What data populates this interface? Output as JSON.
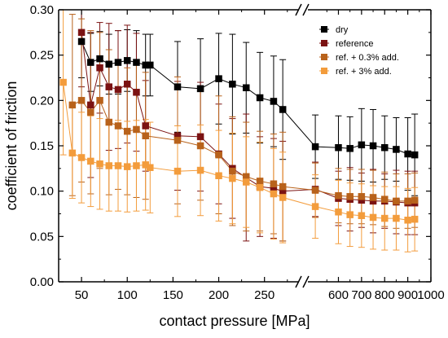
{
  "chart_data": {
    "type": "scatter",
    "title": "",
    "xlabel": "contact pressure [MPa]",
    "ylabel": "coefficient of friction",
    "ylim": [
      0,
      0.3
    ],
    "y_ticks": [
      "0.00",
      "0.05",
      "0.10",
      "0.15",
      "0.20",
      "0.25",
      "0.30"
    ],
    "x_axis_broken": true,
    "x_segments": [
      {
        "range": [
          25,
          285
        ],
        "ticks": [
          "50",
          "100",
          "150",
          "200",
          "250"
        ]
      },
      {
        "range": [
          475,
          1000
        ],
        "ticks": [
          "600",
          "700",
          "800",
          "900",
          "1000"
        ]
      }
    ],
    "legend_position": "top-right",
    "series": [
      {
        "name": "dry",
        "color": "#000000",
        "x": [
          50,
          60,
          70,
          80,
          90,
          100,
          110,
          120,
          125,
          155,
          180,
          200,
          215,
          230,
          245,
          260,
          270,
          500,
          600,
          650,
          700,
          750,
          800,
          850,
          900,
          930
        ],
        "y": [
          0.265,
          0.242,
          0.246,
          0.24,
          0.242,
          0.244,
          0.242,
          0.239,
          0.239,
          0.215,
          0.213,
          0.224,
          0.218,
          0.214,
          0.203,
          0.199,
          0.19,
          0.149,
          0.148,
          0.147,
          0.151,
          0.15,
          0.148,
          0.146,
          0.141,
          0.14
        ],
        "err": [
          0.04,
          0.032,
          0.03,
          0.033,
          0.035,
          0.034,
          0.035,
          0.034,
          0.034,
          0.05,
          0.055,
          0.05,
          0.055,
          0.05,
          0.05,
          0.05,
          0.055,
          0.035,
          0.035,
          0.035,
          0.04,
          0.04,
          0.035,
          0.035,
          0.04,
          0.045
        ]
      },
      {
        "name": "reference",
        "color": "#7b1212",
        "x": [
          50,
          60,
          70,
          80,
          90,
          100,
          110,
          120,
          155,
          180,
          200,
          215,
          230,
          245,
          260,
          270,
          500,
          600,
          650,
          700,
          750,
          800,
          850,
          900,
          930
        ],
        "y": [
          0.275,
          0.195,
          0.236,
          0.215,
          0.212,
          0.218,
          0.209,
          0.172,
          0.161,
          0.16,
          0.141,
          0.125,
          0.115,
          0.105,
          0.103,
          0.1,
          0.102,
          0.092,
          0.091,
          0.09,
          0.089,
          0.089,
          0.088,
          0.087,
          0.087
        ],
        "err": [
          0.06,
          0.08,
          0.05,
          0.07,
          0.065,
          0.065,
          0.065,
          0.05,
          0.06,
          0.06,
          0.055,
          0.055,
          0.07,
          0.055,
          0.055,
          0.055,
          0.03,
          0.03,
          0.035,
          0.03,
          0.035,
          0.03,
          0.035,
          0.035,
          0.035
        ]
      },
      {
        "name": "ref. + 0.3% add.",
        "color": "#b8621b",
        "x": [
          40,
          50,
          60,
          70,
          80,
          90,
          100,
          110,
          120,
          155,
          180,
          200,
          215,
          230,
          245,
          260,
          270,
          500,
          600,
          650,
          700,
          750,
          800,
          850,
          900,
          930
        ],
        "y": [
          0.195,
          0.2,
          0.187,
          0.2,
          0.176,
          0.172,
          0.166,
          0.168,
          0.161,
          0.156,
          0.15,
          0.14,
          0.122,
          0.116,
          0.111,
          0.108,
          0.105,
          0.101,
          0.095,
          0.094,
          0.094,
          0.093,
          0.091,
          0.089,
          0.089,
          0.09
        ],
        "err": [
          0.1,
          0.09,
          0.09,
          0.075,
          0.08,
          0.07,
          0.07,
          0.075,
          0.07,
          0.07,
          0.06,
          0.065,
          0.06,
          0.06,
          0.055,
          0.055,
          0.06,
          0.03,
          0.03,
          0.03,
          0.03,
          0.03,
          0.03,
          0.03,
          0.03,
          0.03
        ]
      },
      {
        "name": "ref. + 3% add.",
        "color": "#f39c3c",
        "x": [
          30,
          40,
          50,
          60,
          70,
          80,
          90,
          100,
          110,
          120,
          125,
          155,
          180,
          200,
          215,
          230,
          245,
          260,
          270,
          500,
          600,
          650,
          700,
          750,
          800,
          850,
          900,
          930
        ],
        "y": [
          0.22,
          0.142,
          0.137,
          0.133,
          0.13,
          0.128,
          0.128,
          0.127,
          0.128,
          0.129,
          0.126,
          0.122,
          0.123,
          0.117,
          0.114,
          0.11,
          0.104,
          0.097,
          0.093,
          0.083,
          0.077,
          0.074,
          0.073,
          0.071,
          0.07,
          0.07,
          0.068,
          0.069
        ],
        "err": [
          0.08,
          0.05,
          0.05,
          0.05,
          0.05,
          0.05,
          0.05,
          0.05,
          0.05,
          0.05,
          0.05,
          0.05,
          0.05,
          0.05,
          0.05,
          0.05,
          0.05,
          0.05,
          0.05,
          0.035,
          0.035,
          0.035,
          0.035,
          0.035,
          0.035,
          0.035,
          0.035,
          0.035
        ]
      }
    ]
  }
}
